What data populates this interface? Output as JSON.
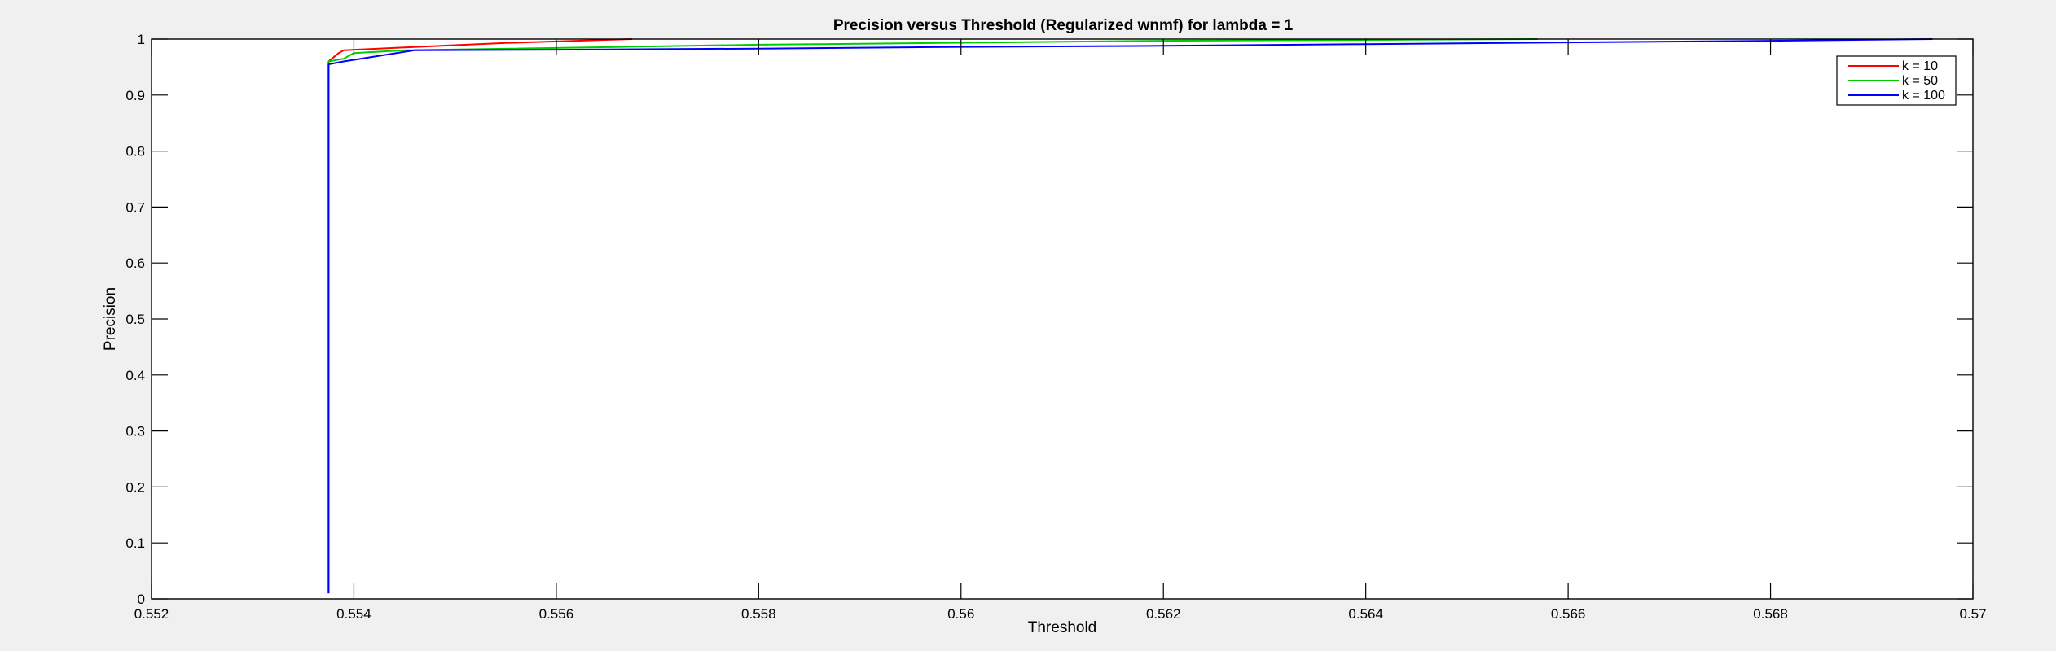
{
  "chart_data": {
    "type": "line",
    "title": "Precision versus Threshold (Regularized wnmf) for lambda = 1",
    "xlabel": "Threshold",
    "ylabel": "Precision",
    "xlim": [
      0.552,
      0.57
    ],
    "ylim": [
      0,
      1
    ],
    "x_ticks": [
      0.552,
      0.554,
      0.556,
      0.558,
      0.56,
      0.562,
      0.564,
      0.566,
      0.568,
      0.57
    ],
    "x_tick_labels": [
      "0.552",
      "0.554",
      "0.556",
      "0.558",
      "0.56",
      "0.562",
      "0.564",
      "0.566",
      "0.568",
      "0.57"
    ],
    "y_ticks": [
      0,
      0.1,
      0.2,
      0.3,
      0.4,
      0.5,
      0.6,
      0.7,
      0.8,
      0.9,
      1
    ],
    "y_tick_labels": [
      "0",
      "0.1",
      "0.2",
      "0.3",
      "0.4",
      "0.5",
      "0.6",
      "0.7",
      "0.8",
      "0.9",
      "1"
    ],
    "grid": false,
    "legend_position": "top-right",
    "series": [
      {
        "name": "k = 10",
        "color": "#ff0000",
        "points": [
          [
            0.55375,
            0.01
          ],
          [
            0.55375,
            0.96
          ],
          [
            0.55385,
            0.975
          ],
          [
            0.5539,
            0.98
          ],
          [
            0.5545,
            0.985
          ],
          [
            0.5555,
            0.993
          ],
          [
            0.55675,
            1.0
          ]
        ]
      },
      {
        "name": "k = 50",
        "color": "#00cc00",
        "points": [
          [
            0.55375,
            0.01
          ],
          [
            0.55375,
            0.96
          ],
          [
            0.5539,
            0.965
          ],
          [
            0.554,
            0.975
          ],
          [
            0.5545,
            0.98
          ],
          [
            0.558,
            0.99
          ],
          [
            0.562,
            0.997
          ],
          [
            0.5657,
            1.0
          ]
        ]
      },
      {
        "name": "k = 100",
        "color": "#0000ff",
        "points": [
          [
            0.55375,
            0.01
          ],
          [
            0.55375,
            0.955
          ],
          [
            0.5539,
            0.96
          ],
          [
            0.5546,
            0.98
          ],
          [
            0.556,
            0.981
          ],
          [
            0.558,
            0.983
          ],
          [
            0.56,
            0.986
          ],
          [
            0.562,
            0.988
          ],
          [
            0.564,
            0.991
          ],
          [
            0.566,
            0.994
          ],
          [
            0.568,
            0.997
          ],
          [
            0.5696,
            1.0
          ]
        ]
      }
    ]
  }
}
